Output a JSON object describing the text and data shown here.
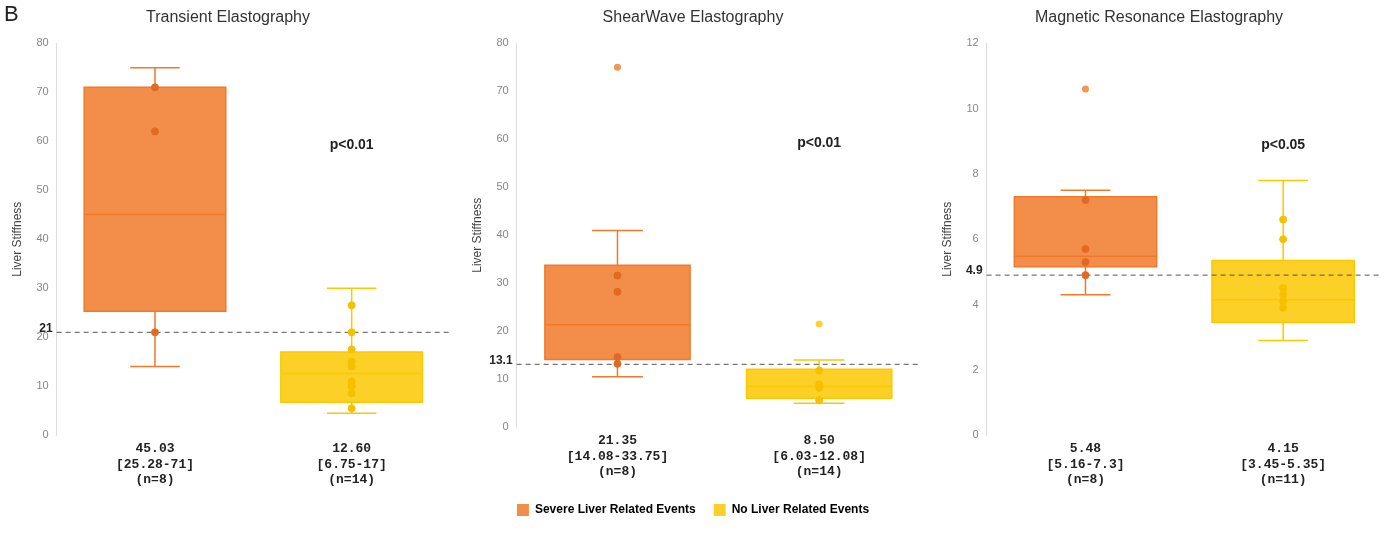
{
  "chart_data": [
    {
      "type": "box",
      "title": "Transient Elastography",
      "ylabel": "Liver Stiffness",
      "categories": [
        "45.03\n[25.28-71]\n(n=8)",
        "12.60\n[6.75-17]\n(n=14)"
      ],
      "ylim": [
        0,
        80
      ],
      "yticks": [
        0,
        10,
        20,
        30,
        40,
        50,
        60,
        70,
        80
      ],
      "marker": "circle",
      "legend": false,
      "grid": false,
      "ref_lines": [
        {
          "axis": "y",
          "value": 21,
          "label": "21",
          "color": "#555555",
          "line_style": "dashed"
        }
      ],
      "annotations": [
        "B",
        "p<0.01"
      ],
      "series": [
        {
          "color": "#f07a2a",
          "boxes": [
            {
              "low": 14,
              "q1": 25.28,
              "median": 45.03,
              "q3": 71,
              "high": 75
            },
            null
          ]
        },
        {
          "color": "#fcc800",
          "boxes": [
            null,
            {
              "low": 4.5,
              "q1": 6.75,
              "median": 12.6,
              "q3": 17,
              "high": 30
            }
          ]
        },
        {
          "type": "scatter",
          "color": "#e06a24",
          "x": [
            "45.03\n[25.28-71]\n(n=8)",
            "45.03\n[25.28-71]\n(n=8)",
            "45.03\n[25.28-71]\n(n=8)"
          ],
          "values": [
            71,
            62,
            21
          ]
        },
        {
          "type": "scatter",
          "color": "#f5c000",
          "x": [
            "12.60\n[6.75-17]\n(n=14)",
            "12.60\n[6.75-17]\n(n=14)",
            "12.60\n[6.75-17]\n(n=14)",
            "12.60\n[6.75-17]\n(n=14)",
            "12.60\n[6.75-17]\n(n=14)",
            "12.60\n[6.75-17]\n(n=14)",
            "12.60\n[6.75-17]\n(n=14)",
            "12.60\n[6.75-17]\n(n=14)",
            "12.60\n[6.75-17]\n(n=14)"
          ],
          "values": [
            26.5,
            21,
            17.5,
            15,
            14,
            11,
            10,
            8.5,
            5.5
          ]
        }
      ]
    },
    {
      "type": "box",
      "title": "ShearWave Elastography",
      "ylabel": "Liver Stiffness",
      "categories": [
        "21.35\n[14.08-33.75]\n(n=8)",
        "8.50\n[6.03-12.08]\n(n=14)"
      ],
      "ylim": [
        0,
        80
      ],
      "yticks": [
        0,
        10,
        20,
        30,
        40,
        50,
        60,
        70,
        80
      ],
      "marker": "circle",
      "legend": "bottom",
      "grid": false,
      "ref_lines": [
        {
          "axis": "y",
          "value": 13.1,
          "label": "13.1",
          "color": "#555555",
          "line_style": "dashed"
        }
      ],
      "annotations": [
        "p<0.01"
      ],
      "series": [
        {
          "name": "Severe Liver Related Events",
          "color": "#f07a2a",
          "boxes": [
            {
              "low": 10.5,
              "q1": 14.08,
              "median": 21.35,
              "q3": 33.75,
              "high": 41,
              "outliers": [
                75
              ]
            },
            null
          ]
        },
        {
          "name": "No Liver Related Events",
          "color": "#fcc800",
          "boxes": [
            null,
            {
              "low": 5,
              "q1": 6.03,
              "median": 8.5,
              "q3": 12.08,
              "high": 14,
              "outliers": [
                21.5
              ]
            }
          ]
        },
        {
          "type": "scatter",
          "color": "#e06a24",
          "x": [
            "21.35\n[14.08-33.75]\n(n=8)",
            "21.35\n[14.08-33.75]\n(n=8)",
            "21.35\n[14.08-33.75]\n(n=8)",
            "21.35\n[14.08-33.75]\n(n=8)"
          ],
          "values": [
            31.6,
            28.2,
            14.6,
            13.2
          ]
        },
        {
          "type": "scatter",
          "color": "#f5c000",
          "x": [
            "8.50\n[6.03-12.08]\n(n=14)",
            "8.50\n[6.03-12.08]\n(n=14)",
            "8.50\n[6.03-12.08]\n(n=14)",
            "8.50\n[6.03-12.08]\n(n=14)"
          ],
          "values": [
            11.8,
            8.9,
            8.2,
            5.6
          ]
        }
      ]
    },
    {
      "type": "box",
      "title": "Magnetic Resonance Elastography",
      "ylabel": "Liver Stiffness",
      "categories": [
        "5.48\n[5.16-7.3]\n(n=8)",
        "4.15\n[3.45-5.35]\n(n=11)"
      ],
      "ylim": [
        0,
        12
      ],
      "yticks": [
        0,
        2,
        4,
        6,
        8,
        10,
        12
      ],
      "marker": "circle",
      "legend": false,
      "grid": false,
      "ref_lines": [
        {
          "axis": "y",
          "value": 4.9,
          "label": "4.9",
          "color": "#555555",
          "line_style": "dashed"
        }
      ],
      "annotations": [
        "p<0.05"
      ],
      "series": [
        {
          "color": "#f07a2a",
          "boxes": [
            {
              "low": 4.3,
              "q1": 5.16,
              "median": 5.48,
              "q3": 7.3,
              "high": 7.5,
              "outliers": [
                10.6
              ]
            },
            null
          ]
        },
        {
          "color": "#fcc800",
          "boxes": [
            null,
            {
              "low": 2.9,
              "q1": 3.45,
              "median": 4.15,
              "q3": 5.35,
              "high": 7.8
            }
          ]
        },
        {
          "type": "scatter",
          "color": "#e06a24",
          "x": [
            "5.48\n[5.16-7.3]\n(n=8)",
            "5.48\n[5.16-7.3]\n(n=8)",
            "5.48\n[5.16-7.3]\n(n=8)",
            "5.48\n[5.16-7.3]\n(n=8)"
          ],
          "values": [
            7.2,
            5.7,
            5.3,
            4.9
          ]
        },
        {
          "type": "scatter",
          "color": "#f5c000",
          "x": [
            "4.15\n[3.45-5.35]\n(n=11)",
            "4.15\n[3.45-5.35]\n(n=11)",
            "4.15\n[3.45-5.35]\n(n=11)",
            "4.15\n[3.45-5.35]\n(n=11)",
            "4.15\n[3.45-5.35]\n(n=11)",
            "4.15\n[3.45-5.35]\n(n=11)"
          ],
          "values": [
            6.6,
            6.0,
            4.5,
            4.3,
            4.1,
            3.9
          ]
        }
      ]
    }
  ]
}
